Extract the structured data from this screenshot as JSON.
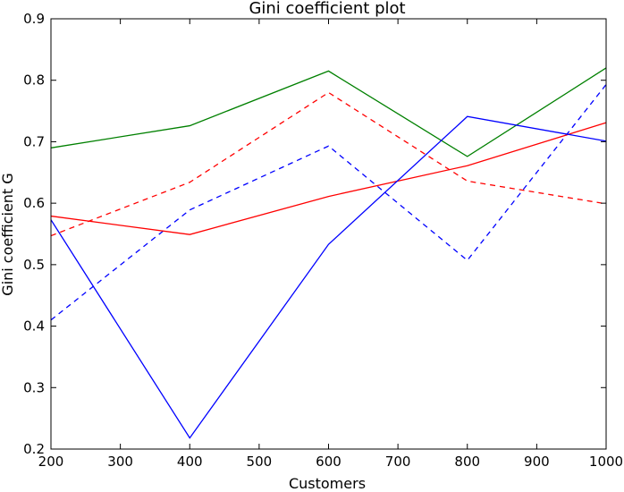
{
  "chart_data": {
    "type": "line",
    "title": "Gini coefficient plot",
    "xlabel": "Customers",
    "ylabel": "Gini coefficient G",
    "xlim": [
      200,
      1000
    ],
    "ylim": [
      0.2,
      0.9
    ],
    "xticks": [
      "200",
      "300",
      "400",
      "500",
      "600",
      "700",
      "800",
      "900",
      "1000"
    ],
    "yticks": [
      "0.2",
      "0.3",
      "0.4",
      "0.5",
      "0.6",
      "0.7",
      "0.8",
      "0.9"
    ],
    "grid": false,
    "legend": "none",
    "x": [
      200,
      400,
      600,
      800,
      1000
    ],
    "series": [
      {
        "color": "#008000",
        "style": "solid",
        "values": [
          0.69,
          0.726,
          0.815,
          0.676,
          0.82
        ]
      },
      {
        "color": "#ff0000",
        "style": "dashed",
        "values": [
          0.547,
          0.634,
          0.78,
          0.636,
          0.599
        ]
      },
      {
        "color": "#0000ff",
        "style": "dashed",
        "values": [
          0.41,
          0.589,
          0.693,
          0.507,
          0.793
        ]
      },
      {
        "color": "#ff0000",
        "style": "solid",
        "values": [
          0.579,
          0.549,
          0.611,
          0.661,
          0.731
        ]
      },
      {
        "color": "#0000ff",
        "style": "solid",
        "values": [
          0.573,
          0.218,
          0.533,
          0.741,
          0.701
        ]
      }
    ]
  }
}
